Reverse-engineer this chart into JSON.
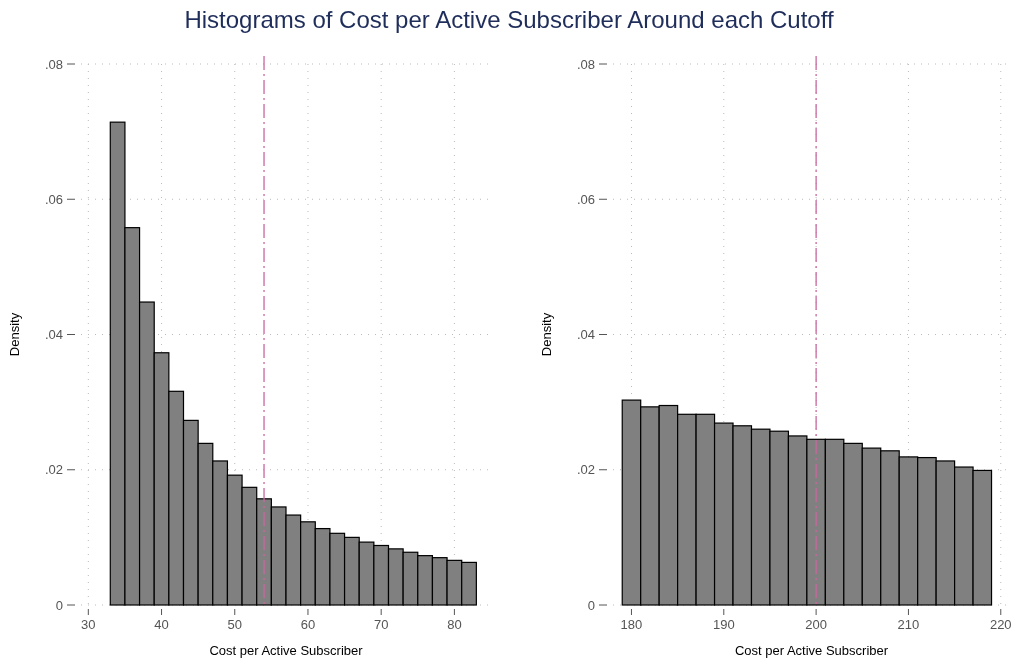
{
  "chart_data": [
    {
      "type": "histogram",
      "title": "Histograms of Cost per Active Subscriber Around each Cutoff",
      "xlabel": "Cost per Active Subscriber",
      "ylabel": "Density",
      "bins": [
        33,
        35,
        37,
        39,
        41,
        43,
        45,
        47,
        49,
        51,
        53,
        55,
        57,
        59,
        61,
        63,
        65,
        67,
        69,
        71,
        73,
        75,
        77,
        79,
        81,
        83
      ],
      "values": [
        0.0714,
        0.0558,
        0.0448,
        0.0373,
        0.0316,
        0.0273,
        0.0239,
        0.0213,
        0.0192,
        0.0174,
        0.0157,
        0.0145,
        0.0133,
        0.0123,
        0.0113,
        0.0106,
        0.01,
        0.0093,
        0.0088,
        0.0083,
        0.0078,
        0.0073,
        0.007,
        0.0066,
        0.0063
      ],
      "color": "#808080",
      "xlim": [
        29,
        85
      ],
      "xticks": [
        30,
        40,
        50,
        60,
        70,
        80
      ],
      "ylim": [
        0,
        0.08
      ],
      "yticks": [
        {
          "value": 0,
          "label": "0"
        },
        {
          "value": 0.02,
          "label": ".02"
        },
        {
          "value": 0.04,
          "label": ".04"
        },
        {
          "value": 0.06,
          "label": ".06"
        },
        {
          "value": 0.08,
          "label": ".08"
        }
      ],
      "grid": true,
      "ref_lines": [
        {
          "axis": "x",
          "value": 54,
          "color": "#c9679f",
          "line_style": "dashed"
        }
      ]
    },
    {
      "type": "histogram",
      "xlabel": "Cost per Active Subscriber",
      "ylabel": "Density",
      "bins": [
        179,
        181,
        183,
        185,
        187,
        189,
        191,
        193,
        195,
        197,
        199,
        201,
        203,
        205,
        207,
        209,
        211,
        213,
        215,
        217,
        219
      ],
      "values": [
        0.0303,
        0.0293,
        0.0295,
        0.0282,
        0.0282,
        0.0269,
        0.0265,
        0.026,
        0.0257,
        0.025,
        0.0245,
        0.0245,
        0.0239,
        0.0232,
        0.0228,
        0.0219,
        0.0218,
        0.0213,
        0.0204,
        0.0199
      ],
      "color": "#808080",
      "xlim": [
        178,
        221
      ],
      "xticks": [
        180,
        190,
        200,
        210,
        220
      ],
      "ylim": [
        0,
        0.08
      ],
      "yticks": [
        {
          "value": 0,
          "label": "0"
        },
        {
          "value": 0.02,
          "label": ".02"
        },
        {
          "value": 0.04,
          "label": ".04"
        },
        {
          "value": 0.06,
          "label": ".06"
        },
        {
          "value": 0.08,
          "label": ".08"
        }
      ],
      "grid": true,
      "ref_lines": [
        {
          "axis": "x",
          "value": 200,
          "color": "#c9679f",
          "line_style": "dashed"
        }
      ]
    }
  ]
}
